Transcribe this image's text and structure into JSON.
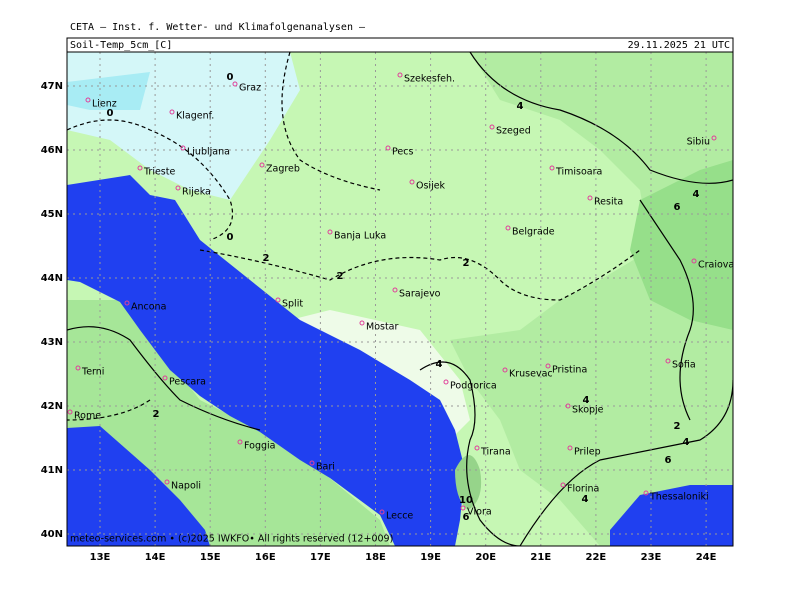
{
  "header": {
    "institute": "CETA – Inst. f. Wetter- und Klimafolgenanalysen –",
    "parameter": "Soil-Temp_5cm_[C]",
    "valid_time": "29.11.2025 21 UTC"
  },
  "footer": "meteo-services.com • (c)2025 IWKFO• All rights reserved (12+009)",
  "map": {
    "lat_labels": [
      "47N",
      "46N",
      "45N",
      "44N",
      "43N",
      "42N",
      "41N",
      "40N"
    ],
    "lon_labels": [
      "13E",
      "14E",
      "15E",
      "16E",
      "17E",
      "18E",
      "19E",
      "20E",
      "21E",
      "22E",
      "23E",
      "24E"
    ],
    "cities": [
      "Lienz",
      "Graz",
      "Szekesfeh.",
      "Klagenf.",
      "Ljubljana",
      "Zagreb",
      "Pecs",
      "Szeged",
      "Trieste",
      "Rijeka",
      "Osijek",
      "Timisoara",
      "Resita",
      "Sibiu",
      "Banja Luka",
      "Belgrade",
      "Craiova",
      "Sarajevo",
      "Split",
      "Ancona",
      "Mostar",
      "Terni",
      "Pescara",
      "Podgorica",
      "Krusevac",
      "Pristina",
      "Sofia",
      "Rome",
      "Skopje",
      "Foggia",
      "Tirana",
      "Prilep",
      "Bari",
      "Napoli",
      "Florina",
      "Thessaloniki",
      "Vlora",
      "Lecce"
    ],
    "contour_labels": [
      "0",
      "0",
      "0",
      "2",
      "2",
      "2",
      "2",
      "2",
      "4",
      "4",
      "4",
      "4",
      "4",
      "4",
      "6",
      "6",
      "6",
      "10"
    ]
  }
}
